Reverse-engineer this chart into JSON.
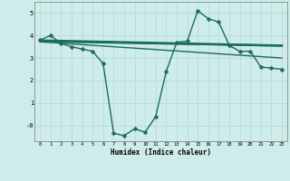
{
  "title": "",
  "xlabel": "Humidex (Indice chaleur)",
  "bg_color": "#ceecea",
  "grid_color": "#b8dbd8",
  "line_color": "#1a6b60",
  "xlim": [
    -0.5,
    23.5
  ],
  "ylim": [
    -0.7,
    5.5
  ],
  "xticks": [
    0,
    1,
    2,
    3,
    4,
    5,
    6,
    7,
    8,
    9,
    10,
    11,
    12,
    13,
    14,
    15,
    16,
    17,
    18,
    19,
    20,
    21,
    22,
    23
  ],
  "yticks": [
    0,
    1,
    2,
    3,
    4,
    5
  ],
  "ytick_labels": [
    "-0",
    "1",
    "2",
    "3",
    "4",
    "5"
  ],
  "series": [
    {
      "x": [
        0,
        1,
        2,
        3,
        4,
        5,
        6,
        7,
        8,
        9,
        10,
        11,
        12,
        13,
        14,
        15,
        16,
        17,
        18,
        19,
        20,
        21,
        22,
        23
      ],
      "y": [
        3.8,
        4.0,
        3.65,
        3.5,
        3.4,
        3.3,
        2.75,
        -0.35,
        -0.45,
        -0.15,
        -0.3,
        0.4,
        2.4,
        3.7,
        3.75,
        5.1,
        4.75,
        4.6,
        3.55,
        3.3,
        3.3,
        2.6,
        2.55,
        2.5
      ],
      "marker": "D",
      "markersize": 2.5,
      "linewidth": 1.0,
      "linestyle": "-"
    },
    {
      "x": [
        0,
        2,
        23
      ],
      "y": [
        3.78,
        3.72,
        3.55
      ],
      "marker": null,
      "markersize": 0,
      "linewidth": 1.5,
      "linestyle": "-"
    },
    {
      "x": [
        0,
        23
      ],
      "y": [
        3.72,
        3.0
      ],
      "marker": null,
      "markersize": 0,
      "linewidth": 1.0,
      "linestyle": "-"
    },
    {
      "x": [
        0,
        23
      ],
      "y": [
        3.78,
        3.55
      ],
      "marker": null,
      "markersize": 0,
      "linewidth": 1.8,
      "linestyle": "-"
    }
  ]
}
